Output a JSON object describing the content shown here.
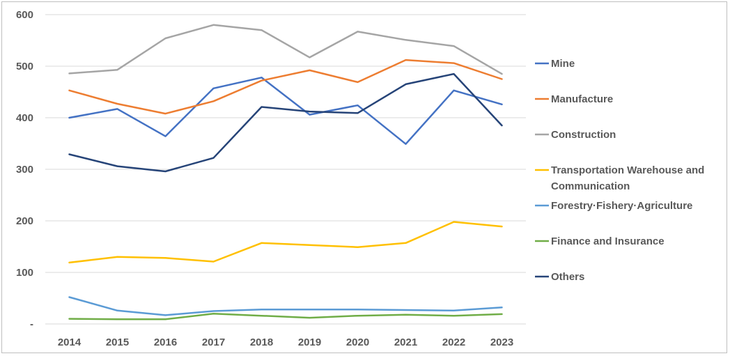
{
  "chart_data": {
    "type": "line",
    "x": [
      "2014",
      "2015",
      "2016",
      "2017",
      "2018",
      "2019",
      "2020",
      "2021",
      "2022",
      "2023"
    ],
    "ylim": [
      0,
      600
    ],
    "yticks": [
      0,
      100,
      200,
      300,
      400,
      500,
      600
    ],
    "ytick_labels": [
      "-",
      "100",
      "200",
      "300",
      "400",
      "500",
      "600"
    ],
    "grid": true,
    "legend_position": "right",
    "series": [
      {
        "name": "Mine",
        "color": "#4472c4",
        "values": [
          400,
          417,
          364,
          457,
          478,
          406,
          424,
          349,
          453,
          426
        ]
      },
      {
        "name": "Manufacture",
        "color": "#ed7d31",
        "values": [
          453,
          427,
          408,
          432,
          472,
          492,
          469,
          512,
          506,
          475
        ]
      },
      {
        "name": "Construction",
        "color": "#a5a5a5",
        "values": [
          486,
          493,
          554,
          580,
          570,
          517,
          567,
          551,
          539,
          485
        ]
      },
      {
        "name": "Transportation Warehouse and Communication",
        "label_lines": [
          "Transportation Warehouse and",
          "Communication"
        ],
        "color": "#ffc000",
        "values": [
          119,
          130,
          128,
          121,
          157,
          153,
          149,
          157,
          198,
          189
        ]
      },
      {
        "name": "Forestry·Fishery·Agriculture",
        "color": "#5b9bd5",
        "values": [
          52,
          26,
          17,
          25,
          28,
          28,
          28,
          27,
          26,
          32
        ]
      },
      {
        "name": "Finance and Insurance",
        "color": "#70ad47",
        "values": [
          10,
          9,
          9,
          20,
          16,
          12,
          16,
          18,
          16,
          19
        ]
      },
      {
        "name": "Others",
        "color": "#264478",
        "values": [
          329,
          306,
          296,
          322,
          421,
          412,
          409,
          465,
          485,
          385
        ]
      }
    ]
  }
}
